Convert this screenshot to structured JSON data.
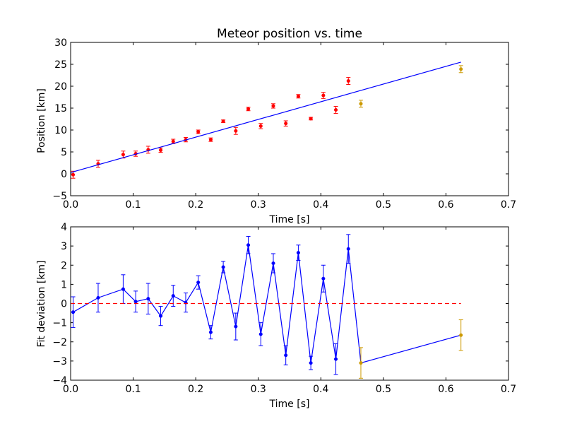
{
  "chart_data": [
    {
      "type": "scatter",
      "title": "Meteor position vs. time",
      "xlabel": "Time [s]",
      "ylabel": "Position [km]",
      "xlim": [
        0,
        0.7
      ],
      "ylim": [
        -5,
        30
      ],
      "xticks": [
        "0.0",
        "0.1",
        "0.2",
        "0.3",
        "0.4",
        "0.5",
        "0.6",
        "0.7"
      ],
      "xtick_values": [
        0,
        0.1,
        0.2,
        0.3,
        0.4,
        0.5,
        0.6,
        0.7
      ],
      "yticks": [
        "−5",
        "0",
        "5",
        "10",
        "15",
        "20",
        "25",
        "30"
      ],
      "ytick_values": [
        -5,
        0,
        5,
        10,
        15,
        20,
        25,
        30
      ],
      "grid": false,
      "series": [
        {
          "kind": "points-errorbars",
          "color": "#ff0000",
          "x": [
            0.004,
            0.044,
            0.084,
            0.104,
            0.124,
            0.144,
            0.164,
            0.184,
            0.204,
            0.224,
            0.244,
            0.264,
            0.284,
            0.304,
            0.324,
            0.344,
            0.364,
            0.384,
            0.404,
            0.424,
            0.444
          ],
          "y": [
            -0.2,
            2.3,
            4.4,
            4.6,
            5.5,
            5.4,
            7.4,
            7.8,
            9.6,
            7.8,
            12.0,
            9.8,
            14.8,
            10.9,
            15.5,
            11.5,
            17.7,
            12.6,
            17.9,
            14.6,
            21.2
          ],
          "err": [
            0.8,
            0.8,
            0.8,
            0.6,
            0.8,
            0.5,
            0.5,
            0.5,
            0.4,
            0.4,
            0.3,
            0.8,
            0.4,
            0.6,
            0.5,
            0.6,
            0.4,
            0.3,
            0.7,
            0.8,
            0.8
          ]
        },
        {
          "kind": "points-errorbars",
          "color": "#cc9900",
          "x": [
            0.464,
            0.624
          ],
          "y": [
            16.0,
            23.9
          ],
          "err": [
            0.8,
            0.8
          ]
        },
        {
          "kind": "line",
          "color": "#0000ff",
          "x": [
            0.0,
            0.624
          ],
          "y": [
            0.3,
            25.5
          ]
        }
      ]
    },
    {
      "type": "line",
      "xlabel": "Time [s]",
      "ylabel": "Fit deviation [km]",
      "xlim": [
        0,
        0.7
      ],
      "ylim": [
        -4,
        4
      ],
      "xticks": [
        "0.0",
        "0.1",
        "0.2",
        "0.3",
        "0.4",
        "0.5",
        "0.6",
        "0.7"
      ],
      "xtick_values": [
        0,
        0.1,
        0.2,
        0.3,
        0.4,
        0.5,
        0.6,
        0.7
      ],
      "yticks": [
        "−4",
        "−3",
        "−2",
        "−1",
        "0",
        "1",
        "2",
        "3",
        "4"
      ],
      "ytick_values": [
        -4,
        -3,
        -2,
        -1,
        0,
        1,
        2,
        3,
        4
      ],
      "grid": false,
      "series": [
        {
          "kind": "line-errorbars",
          "color": "#0000ff",
          "x": [
            0.004,
            0.044,
            0.084,
            0.104,
            0.124,
            0.144,
            0.164,
            0.184,
            0.204,
            0.224,
            0.244,
            0.264,
            0.284,
            0.304,
            0.324,
            0.344,
            0.364,
            0.384,
            0.404,
            0.424,
            0.444,
            0.464,
            0.624
          ],
          "y": [
            -0.45,
            0.3,
            0.75,
            0.1,
            0.25,
            -0.65,
            0.4,
            0.05,
            1.1,
            -1.5,
            1.9,
            -1.2,
            3.05,
            -1.6,
            2.1,
            -2.7,
            2.65,
            -3.1,
            1.3,
            -2.9,
            2.85,
            -3.1,
            -1.65
          ],
          "err": [
            0.8,
            0.75,
            0.75,
            0.55,
            0.8,
            0.5,
            0.55,
            0.5,
            0.35,
            0.35,
            0.3,
            0.7,
            0.45,
            0.6,
            0.5,
            0.5,
            0.4,
            0.35,
            0.7,
            0.8,
            0.75,
            0.8,
            0.8
          ],
          "point_colors": [
            "#0000ff",
            "#0000ff",
            "#0000ff",
            "#0000ff",
            "#0000ff",
            "#0000ff",
            "#0000ff",
            "#0000ff",
            "#0000ff",
            "#0000ff",
            "#0000ff",
            "#0000ff",
            "#0000ff",
            "#0000ff",
            "#0000ff",
            "#0000ff",
            "#0000ff",
            "#0000ff",
            "#0000ff",
            "#0000ff",
            "#0000ff",
            "#cc9900",
            "#cc9900"
          ]
        },
        {
          "kind": "hline-dashed",
          "color": "#ff0000",
          "x": [
            0.0,
            0.624
          ],
          "y": [
            0,
            0
          ]
        }
      ]
    }
  ]
}
